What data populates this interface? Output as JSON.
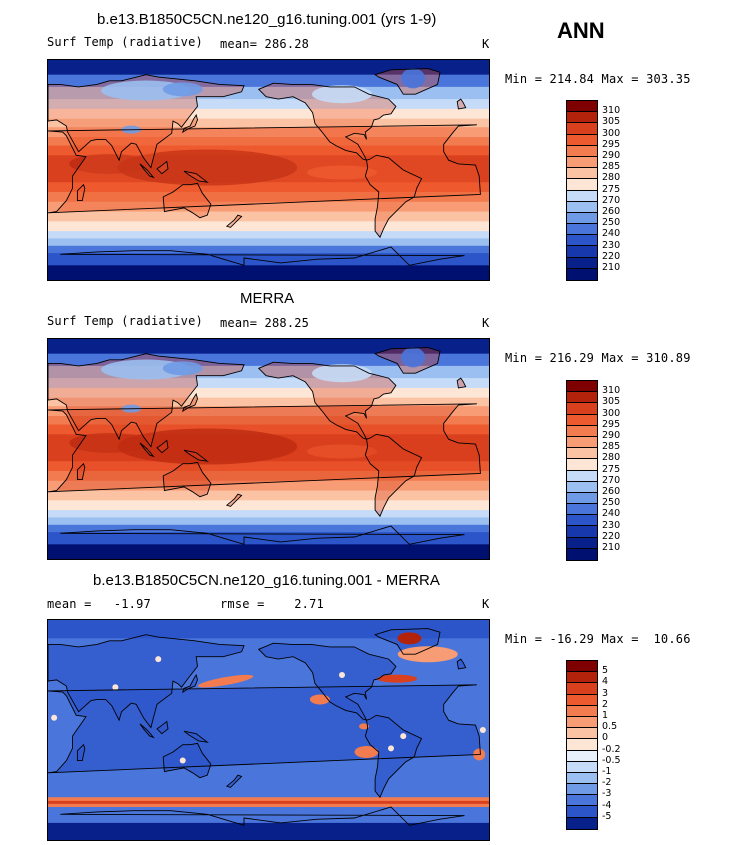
{
  "season_label": "ANN",
  "panels": [
    {
      "title": "b.e13.B1850C5CN.ne120_g16.tuning.001 (yrs 1-9)",
      "left_label": "Surf Temp (radiative)",
      "center_label": "mean= 286.28",
      "units": "K",
      "minmax": "Min = 214.84 Max = 303.35",
      "colorbar_labels": [
        "310",
        "305",
        "300",
        "295",
        "290",
        "285",
        "280",
        "275",
        "270",
        "260",
        "250",
        "240",
        "230",
        "220",
        "210"
      ],
      "colorbar_colors": [
        "#7f0000",
        "#b3230c",
        "#d9401e",
        "#ee5a2f",
        "#f27c4f",
        "#f79c75",
        "#fbc3a3",
        "#fde6d6",
        "#c6dbf7",
        "#9bbff0",
        "#6f9be6",
        "#4a76dc",
        "#2c55c9",
        "#1737ad",
        "#07208a",
        "#001070"
      ],
      "style": "model"
    },
    {
      "title": "MERRA",
      "left_label": "Surf Temp (radiative)",
      "center_label": "mean= 288.25",
      "units": "K",
      "minmax": "Min = 216.29 Max = 310.89",
      "colorbar_labels": [
        "310",
        "305",
        "300",
        "295",
        "290",
        "285",
        "280",
        "275",
        "270",
        "260",
        "250",
        "240",
        "230",
        "220",
        "210"
      ],
      "colorbar_colors": [
        "#7f0000",
        "#b3230c",
        "#d9401e",
        "#ee5a2f",
        "#f27c4f",
        "#f79c75",
        "#fbc3a3",
        "#fde6d6",
        "#c6dbf7",
        "#9bbff0",
        "#6f9be6",
        "#4a76dc",
        "#2c55c9",
        "#1737ad",
        "#07208a",
        "#001070"
      ],
      "style": "obs"
    },
    {
      "title": "b.e13.B1850C5CN.ne120_g16.tuning.001 - MERRA",
      "left_label": "mean =   -1.97",
      "center_label": "rmse =    2.71",
      "units": "K",
      "minmax": "Min = -16.29 Max =  10.66",
      "colorbar_labels": [
        "5",
        "4",
        "3",
        "2",
        "1",
        "0.5",
        "0",
        "-0.2",
        "-0.5",
        "-1",
        "-2",
        "-3",
        "-4",
        "-5"
      ],
      "colorbar_colors": [
        "#7f0000",
        "#b3230c",
        "#d9401e",
        "#ee5a2f",
        "#f27c4f",
        "#f79c75",
        "#fbc3a3",
        "#fde6d6",
        "#e8f0fb",
        "#c6dbf7",
        "#9bbff0",
        "#6f9be6",
        "#4a76dc",
        "#2c55c9",
        "#07208a"
      ],
      "style": "diff"
    }
  ]
}
